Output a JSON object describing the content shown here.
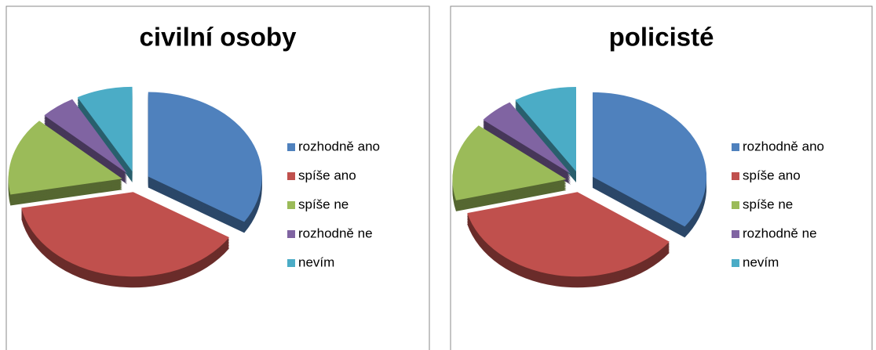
{
  "chart_data": [
    {
      "type": "pie",
      "title": "civilní osoby",
      "categories": [
        "rozhodně ano",
        "spíše ano",
        "spíše ne",
        "rozhodně ne",
        "nevím"
      ],
      "values": [
        34,
        38,
        15,
        5,
        8
      ],
      "colors": [
        "#4f81bd",
        "#c0504d",
        "#9bbb59",
        "#8064a2",
        "#4bacc6"
      ],
      "legend": "right"
    },
    {
      "type": "pie",
      "title": "policisté",
      "categories": [
        "rozhodně ano",
        "spíše ano",
        "spíše ne",
        "rozhodně ne",
        "nevím"
      ],
      "values": [
        35,
        36,
        15,
        5,
        9
      ],
      "colors": [
        "#4f81bd",
        "#c0504d",
        "#9bbb59",
        "#8064a2",
        "#4bacc6"
      ],
      "legend": "right"
    }
  ]
}
